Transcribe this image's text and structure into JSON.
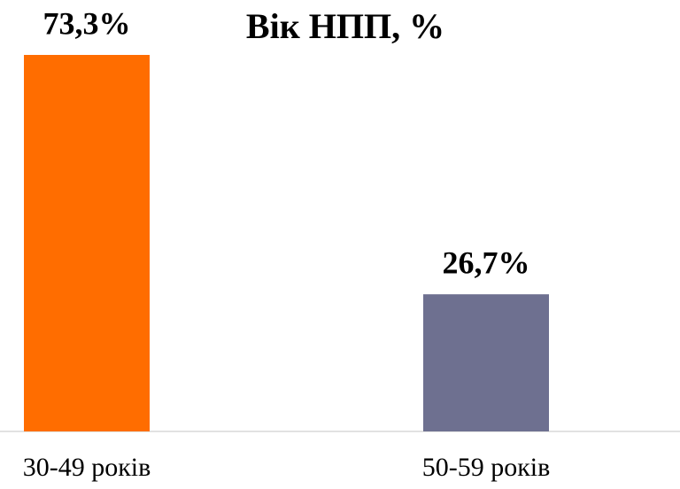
{
  "chart_data": {
    "type": "bar",
    "title": "Вік НПП, %",
    "categories": [
      "30-49 років",
      "50-59 років"
    ],
    "values": [
      73.3,
      26.7
    ],
    "value_labels": [
      "73,3%",
      "26,7%"
    ],
    "colors": [
      "#ff6d00",
      "#6e7090"
    ]
  }
}
